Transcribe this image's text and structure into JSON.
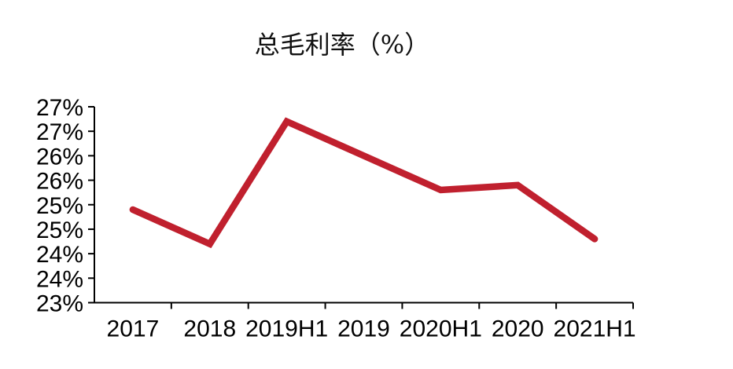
{
  "chart_data": {
    "type": "line",
    "title": "总毛利率（%）",
    "categories": [
      "2017",
      "2018",
      "2019H1",
      "2019",
      "2020H1",
      "2020",
      "2021H1"
    ],
    "series": [
      {
        "name": "总毛利率",
        "values": [
          24.9,
          24.2,
          26.7,
          26.0,
          25.3,
          25.4,
          24.3
        ]
      }
    ],
    "unit": "%",
    "xlabel": "",
    "ylabel": "",
    "ylim": [
      23,
      27
    ],
    "ytick_step": 0.5,
    "ytick_labels_top_to_bottom": [
      "27%",
      "27%",
      "26%",
      "26%",
      "25%",
      "25%",
      "24%",
      "24%",
      "23%"
    ],
    "grid": false,
    "legend_position": "none",
    "line_color": "#c0202e",
    "axis_color": "#000000",
    "background_color": "#ffffff"
  }
}
